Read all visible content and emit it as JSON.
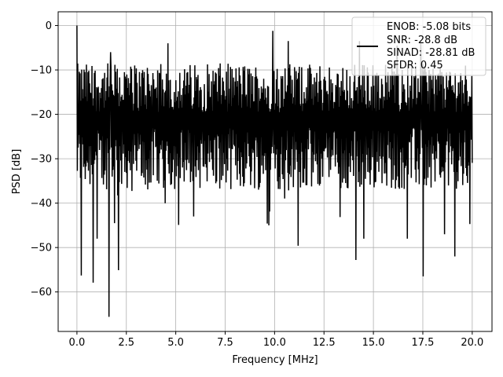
{
  "chart_data": {
    "type": "line",
    "xlabel": "Frequency [MHz]",
    "ylabel": "PSD [dB]",
    "xlim": [
      -0.95,
      21.0
    ],
    "ylim": [
      -68.9,
      3.1
    ],
    "x_ticks": [
      0.0,
      2.5,
      5.0,
      7.5,
      10.0,
      12.5,
      15.0,
      17.5,
      20.0
    ],
    "x_tick_labels": [
      "0.0",
      "2.5",
      "5.0",
      "7.5",
      "10.0",
      "12.5",
      "15.0",
      "17.5",
      "20.0"
    ],
    "y_ticks": [
      0,
      -10,
      -20,
      -30,
      -40,
      -50,
      -60
    ],
    "y_tick_labels": [
      "0",
      "−10",
      "−20",
      "−30",
      "−40",
      "−50",
      "−60"
    ],
    "grid": true,
    "legend_position": "top-right",
    "line_color": "#000000",
    "series": [
      {
        "name": "",
        "x_start": 0.0,
        "x_end": 20.0,
        "points": 1000,
        "band_upper_mean": -14,
        "band_lower_mean": -30,
        "max_values": [
          {
            "x": 0.0,
            "y": 0.0
          },
          {
            "x": 1.7,
            "y": -6.0
          },
          {
            "x": 4.6,
            "y": -4.0
          },
          {
            "x": 9.9,
            "y": -1.2
          },
          {
            "x": 10.7,
            "y": -3.5
          },
          {
            "x": 14.3,
            "y": -3.5
          },
          {
            "x": 16.2,
            "y": -4.5
          },
          {
            "x": 17.4,
            "y": -4.0
          }
        ],
        "dips": [
          {
            "x": 0.2,
            "y": -56.3
          },
          {
            "x": 0.8,
            "y": -57.9
          },
          {
            "x": 1.0,
            "y": -48.0
          },
          {
            "x": 1.6,
            "y": -65.6
          },
          {
            "x": 1.9,
            "y": -44.5
          },
          {
            "x": 2.1,
            "y": -55.1
          },
          {
            "x": 5.9,
            "y": -43.0
          },
          {
            "x": 9.6,
            "y": -44.6
          },
          {
            "x": 9.7,
            "y": -45.0
          },
          {
            "x": 11.2,
            "y": -49.6
          },
          {
            "x": 14.1,
            "y": -52.8
          },
          {
            "x": 14.5,
            "y": -48.0
          },
          {
            "x": 16.7,
            "y": -48.0
          },
          {
            "x": 17.5,
            "y": -56.5
          },
          {
            "x": 18.6,
            "y": -47.0
          },
          {
            "x": 19.1,
            "y": -52.0
          }
        ]
      }
    ],
    "legend_lines": [
      "ENOB: -5.08 bits",
      "SNR: -28.8 dB",
      "SINAD: -28.81 dB",
      "SFDR: 0.45"
    ]
  }
}
